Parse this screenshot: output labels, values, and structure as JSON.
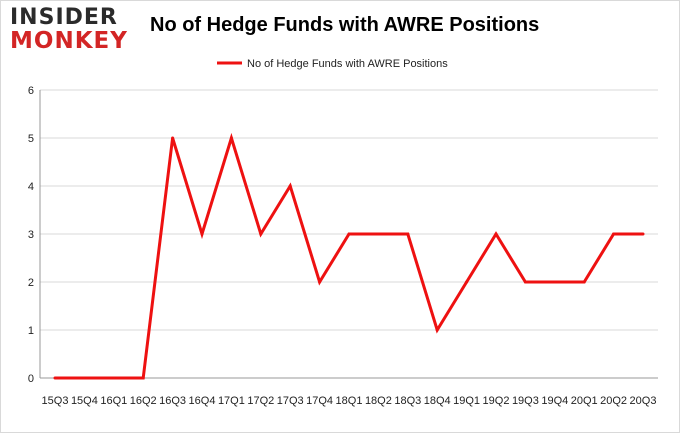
{
  "logo": {
    "line1": "INSIDER",
    "line2": "MONKEY"
  },
  "colors": {
    "series": "#ee1111",
    "grid": "#d9d9d9",
    "axis": "#999999",
    "logo_dark": "#2b2b2b",
    "logo_red": "#d32525"
  },
  "chart_data": {
    "type": "line",
    "title": "No of Hedge Funds with AWRE Positions",
    "xlabel": "",
    "ylabel": "",
    "ylim": [
      0,
      6
    ],
    "yticks": [
      0,
      1,
      2,
      3,
      4,
      5,
      6
    ],
    "grid": true,
    "legend_position": "top-center",
    "categories": [
      "15Q3",
      "15Q4",
      "16Q1",
      "16Q2",
      "16Q3",
      "16Q4",
      "17Q1",
      "17Q2",
      "17Q3",
      "17Q4",
      "18Q1",
      "18Q2",
      "18Q3",
      "18Q4",
      "19Q1",
      "19Q2",
      "19Q3",
      "19Q4",
      "20Q1",
      "20Q2",
      "20Q3"
    ],
    "series": [
      {
        "name": "No of Hedge Funds with AWRE Positions",
        "values": [
          0,
          0,
          0,
          0,
          5,
          3,
          5,
          3,
          4,
          2,
          3,
          3,
          3,
          1,
          2,
          3,
          2,
          2,
          2,
          3,
          3
        ]
      }
    ]
  }
}
